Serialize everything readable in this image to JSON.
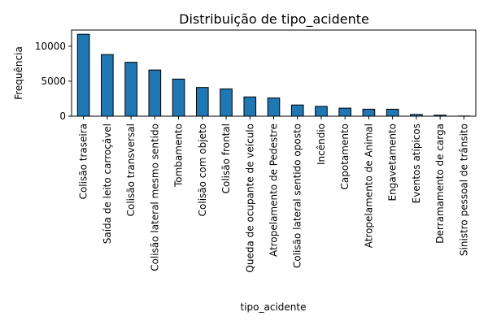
{
  "chart_data": {
    "type": "bar",
    "title": "Distribuição de tipo_acidente",
    "xlabel": "tipo_acidente",
    "ylabel": "Frequência",
    "ylim": [
      0,
      12300
    ],
    "yticks": [
      0,
      5000,
      10000
    ],
    "ytick_labels": [
      "0",
      "5000",
      "10000"
    ],
    "grid": false,
    "legend": "none",
    "bar_color": "#1f77b4",
    "edge_color": "#000000",
    "categories": [
      "Colisão traseira",
      "Saída de leito carroçável",
      "Colisão transversal",
      "Colisão lateral mesmo sentido",
      "Tombamento",
      "Colisão com objeto",
      "Colisão frontal",
      "Queda de ocupante de veículo",
      "Atropelamento de Pedestre",
      "Colisão lateral sentido oposto",
      "Incêndio",
      "Capotamento",
      "Atropelamento de Animal",
      "Engavetamento",
      "Eventos atípicos",
      "Derramamento de carga",
      "Sinistro pessoal de trânsito"
    ],
    "values": [
      11700,
      8800,
      7700,
      6600,
      5300,
      4100,
      3900,
      2750,
      2600,
      1600,
      1400,
      1150,
      1000,
      1000,
      250,
      150,
      30
    ]
  }
}
